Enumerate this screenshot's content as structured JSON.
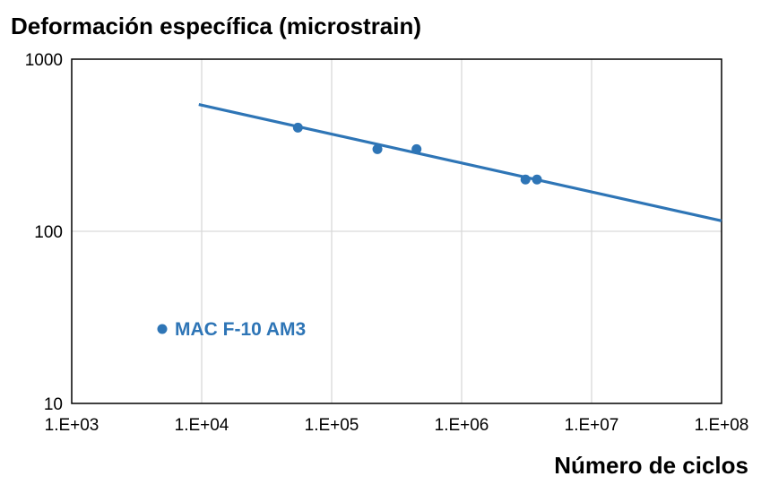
{
  "chart_data": {
    "type": "scatter",
    "title": "Deformación específica (microstrain)",
    "xlabel": "Número de ciclos",
    "ylabel": "",
    "x_scale": "log",
    "y_scale": "log",
    "xlim": [
      1000,
      100000000
    ],
    "ylim": [
      10,
      1000
    ],
    "x_tick_values": [
      1000,
      10000,
      100000,
      1000000,
      10000000,
      100000000
    ],
    "x_tick_labels": [
      "1.E+03",
      "1.E+04",
      "1.E+05",
      "1.E+06",
      "1.E+07",
      "1.E+08"
    ],
    "y_tick_values": [
      10,
      100,
      1000
    ],
    "y_tick_labels": [
      "10",
      "100",
      "1000"
    ],
    "grid": true,
    "legend_position": "bottom-left",
    "series": [
      {
        "name": "MAC F-10 AM3",
        "color": "#2E75B6",
        "x": [
          55000,
          225000,
          450000,
          3100000,
          3800000
        ],
        "y": [
          400,
          300,
          300,
          200,
          200
        ]
      }
    ],
    "trendline": {
      "type": "power",
      "color": "#2E75B6",
      "x": [
        9500,
        100000000
      ],
      "y": [
        545,
        115
      ]
    }
  }
}
